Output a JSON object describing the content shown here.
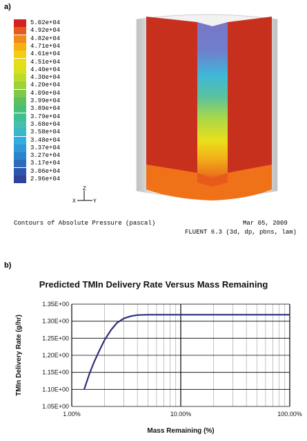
{
  "panel_a_label": "a)",
  "panel_b_label": "b)",
  "colorbar": {
    "labels": [
      "5.02e+04",
      "4.92e+04",
      "4.82e+04",
      "4.71e+04",
      "4.61e+04",
      "4.51e+04",
      "4.40e+04",
      "4.30e+04",
      "4.20e+04",
      "4.09e+04",
      "3.99e+04",
      "3.89e+04",
      "3.79e+04",
      "3.68e+04",
      "3.58e+04",
      "3.48e+04",
      "3.37e+04",
      "3.27e+04",
      "3.17e+04",
      "3.06e+04",
      "2.96e+04"
    ],
    "colors": [
      "#d42020",
      "#e85a1c",
      "#f08a18",
      "#f5b014",
      "#f4cc12",
      "#eadc18",
      "#d7e21e",
      "#bcdc28",
      "#9ed238",
      "#7ec84a",
      "#60bf5e",
      "#48c07a",
      "#3fbf95",
      "#46bfb0",
      "#3bb7cc",
      "#33aee0",
      "#2e9ad8",
      "#2c84cc",
      "#2c6cbc",
      "#2c56ac",
      "#2e449c"
    ]
  },
  "triad": {
    "up_axis": "Z",
    "right_axis": "Y",
    "left_axis": "X"
  },
  "contour_caption": "Contours of Absolute Pressure (pascal)",
  "date_caption": "Mar 05, 2009",
  "fluent_caption": "FLUENT 6.3 (3d, dp, pbns, lam)",
  "chart_data": {
    "type": "line",
    "title": "Predicted TMIn Delivery Rate Versus Mass Remaining",
    "xlabel": "Mass Remaining (%)",
    "ylabel": "TMIn Delivery Rate (g/hr)",
    "x_scale": "log",
    "xlim": [
      1,
      100
    ],
    "ylim": [
      1.05,
      1.35
    ],
    "x_tick_labels": [
      "1.00%",
      "10.00%",
      "100.00%"
    ],
    "x_tick_values": [
      1,
      10,
      100
    ],
    "y_tick_labels": [
      "1.05E+00",
      "1.10E+00",
      "1.15E+00",
      "1.20E+00",
      "1.25E+00",
      "1.30E+00",
      "1.35E+00"
    ],
    "y_tick_values": [
      1.05,
      1.1,
      1.15,
      1.2,
      1.25,
      1.3,
      1.35
    ],
    "grid": true,
    "series": [
      {
        "color": "#2b2f7a",
        "x": [
          1.3,
          1.45,
          1.6,
          1.8,
          2.0,
          2.3,
          2.6,
          3.0,
          3.5,
          4.0,
          5.0,
          7.0,
          10,
          20,
          50,
          100
        ],
        "y": [
          1.1,
          1.145,
          1.18,
          1.215,
          1.245,
          1.275,
          1.295,
          1.308,
          1.315,
          1.318,
          1.319,
          1.319,
          1.319,
          1.319,
          1.319,
          1.319
        ]
      }
    ]
  }
}
